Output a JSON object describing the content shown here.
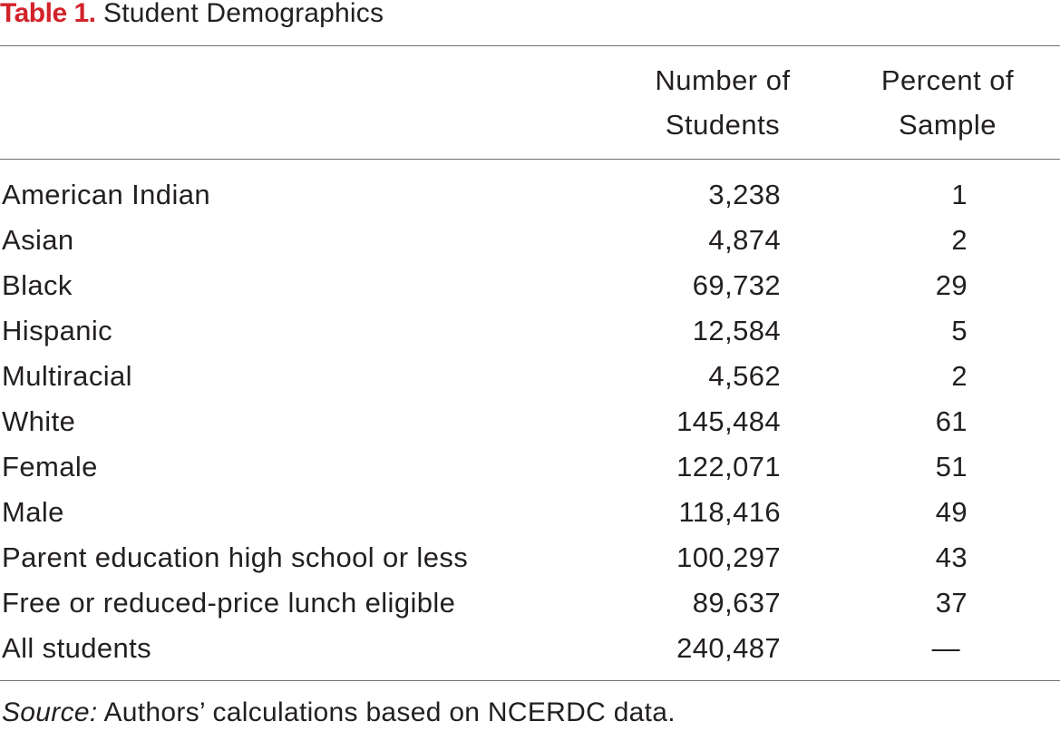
{
  "caption": {
    "label": "Table 1.",
    "title": "Student Demographics"
  },
  "columns": {
    "number_line1": "Number of",
    "number_line2": "Students",
    "percent_line1": "Percent of",
    "percent_line2": "Sample"
  },
  "rows": [
    {
      "label": "American Indian",
      "number": "3,238",
      "percent": "1"
    },
    {
      "label": "Asian",
      "number": "4,874",
      "percent": "2"
    },
    {
      "label": "Black",
      "number": "69,732",
      "percent": "29"
    },
    {
      "label": "Hispanic",
      "number": "12,584",
      "percent": "5"
    },
    {
      "label": "Multiracial",
      "number": "4,562",
      "percent": "2"
    },
    {
      "label": "White",
      "number": "145,484",
      "percent": "61"
    },
    {
      "label": "Female",
      "number": "122,071",
      "percent": "51"
    },
    {
      "label": "Male",
      "number": "118,416",
      "percent": "49"
    },
    {
      "label": "Parent education high school or less",
      "number": "100,297",
      "percent": "43"
    },
    {
      "label": "Free or reduced-price lunch eligible",
      "number": "89,637",
      "percent": "37"
    },
    {
      "label": "All students",
      "number": "240,487",
      "percent": "—"
    }
  ],
  "source": {
    "prefix": "Source:",
    "text": " Authors’ calculations based on NCERDC data."
  },
  "colors": {
    "label_accent": "#d2232a",
    "text": "#231f20",
    "rule": "#6d6e71"
  }
}
